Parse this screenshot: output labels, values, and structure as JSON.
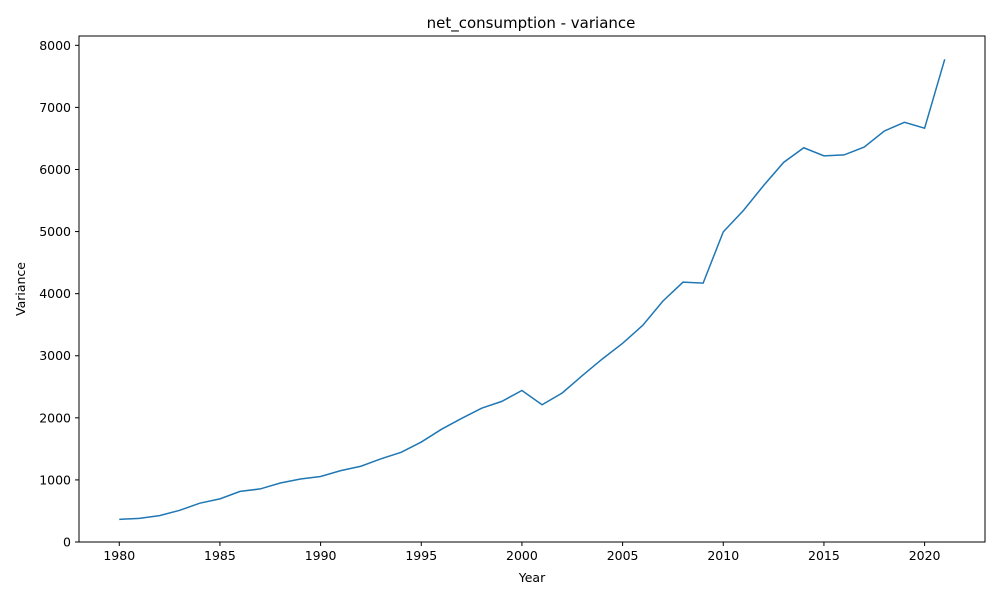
{
  "chart_data": {
    "type": "line",
    "title": "net_consumption - variance",
    "xlabel": "Year",
    "ylabel": "Variance",
    "xlim": [
      1978,
      2023
    ],
    "ylim": [
      0,
      8150
    ],
    "xticks": [
      1980,
      1985,
      1990,
      1995,
      2000,
      2005,
      2010,
      2015,
      2020
    ],
    "yticks": [
      0,
      1000,
      2000,
      3000,
      4000,
      5000,
      6000,
      7000,
      8000
    ],
    "grid": false,
    "line_color": "#1f77b4",
    "series": [
      {
        "x": [
          1980,
          1981,
          1982,
          1983,
          1984,
          1985,
          1986,
          1987,
          1988,
          1989,
          1990,
          1991,
          1992,
          1993,
          1994,
          1995,
          1996,
          1997,
          1998,
          1999,
          2000,
          2001,
          2002,
          2003,
          2004,
          2005,
          2006,
          2007,
          2008,
          2009,
          2010,
          2011,
          2012,
          2013,
          2014,
          2015,
          2016,
          2017,
          2018,
          2019,
          2020,
          2021
        ],
        "values": [
          365,
          380,
          425,
          510,
          625,
          695,
          815,
          855,
          950,
          1015,
          1055,
          1150,
          1220,
          1340,
          1445,
          1610,
          1815,
          1990,
          2155,
          2265,
          2440,
          2210,
          2400,
          2680,
          2950,
          3200,
          3490,
          3880,
          4185,
          4170,
          4995,
          5340,
          5740,
          6115,
          6350,
          6220,
          6235,
          6360,
          6620,
          6760,
          6665,
          7775
        ]
      }
    ]
  }
}
